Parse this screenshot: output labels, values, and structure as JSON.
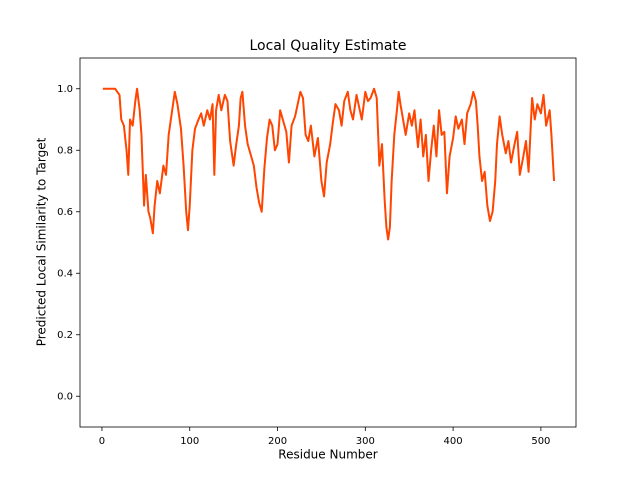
{
  "chart_data": {
    "type": "line",
    "title": "Local Quality Estimate",
    "xlabel": "Residue Number",
    "ylabel": "Predicted Local Similarity to Target",
    "color": "#ff4500",
    "grid": false,
    "xlim": [
      -25,
      540
    ],
    "ylim": [
      -0.1,
      1.1
    ],
    "xticks": [
      0,
      100,
      200,
      300,
      400,
      500
    ],
    "yticks": [
      {
        "value": 0,
        "label": "0.0"
      },
      0.2,
      0.4,
      0.6,
      0.8,
      {
        "value": 1,
        "label": "1.0"
      }
    ],
    "x": [
      1,
      5,
      10,
      15,
      20,
      22,
      25,
      28,
      30,
      32,
      35,
      38,
      40,
      43,
      45,
      48,
      50,
      53,
      55,
      58,
      60,
      63,
      66,
      70,
      73,
      76,
      80,
      83,
      86,
      90,
      93,
      96,
      98,
      100,
      103,
      106,
      110,
      113,
      116,
      120,
      123,
      126,
      128,
      130,
      133,
      136,
      140,
      143,
      146,
      150,
      153,
      156,
      158,
      160,
      163,
      166,
      170,
      173,
      176,
      179,
      182,
      185,
      188,
      191,
      194,
      197,
      200,
      203,
      206,
      210,
      213,
      216,
      220,
      223,
      226,
      229,
      232,
      235,
      238,
      242,
      246,
      250,
      253,
      256,
      260,
      263,
      266,
      270,
      273,
      276,
      280,
      283,
      286,
      290,
      293,
      296,
      300,
      303,
      306,
      310,
      313,
      316,
      319,
      322,
      324,
      326,
      328,
      330,
      333,
      336,
      338,
      340,
      343,
      346,
      350,
      353,
      356,
      360,
      363,
      366,
      369,
      372,
      375,
      378,
      381,
      384,
      387,
      390,
      393,
      396,
      400,
      403,
      406,
      410,
      413,
      416,
      420,
      423,
      426,
      428,
      430,
      433,
      436,
      439,
      442,
      445,
      448,
      450,
      453,
      456,
      460,
      463,
      466,
      470,
      473,
      476,
      480,
      483,
      486,
      490,
      493,
      496,
      500,
      503,
      506,
      510,
      512,
      515
    ],
    "values": [
      1,
      1,
      1,
      1,
      0.98,
      0.9,
      0.88,
      0.8,
      0.72,
      0.9,
      0.88,
      0.96,
      1,
      0.93,
      0.85,
      0.62,
      0.72,
      0.6,
      0.58,
      0.53,
      0.62,
      0.7,
      0.66,
      0.75,
      0.72,
      0.85,
      0.93,
      0.99,
      0.95,
      0.87,
      0.75,
      0.6,
      0.54,
      0.62,
      0.8,
      0.87,
      0.9,
      0.92,
      0.88,
      0.93,
      0.9,
      0.95,
      0.72,
      0.93,
      0.98,
      0.93,
      0.98,
      0.96,
      0.83,
      0.75,
      0.82,
      0.88,
      0.97,
      0.99,
      0.88,
      0.82,
      0.78,
      0.75,
      0.68,
      0.63,
      0.6,
      0.74,
      0.84,
      0.9,
      0.88,
      0.8,
      0.82,
      0.93,
      0.9,
      0.86,
      0.76,
      0.88,
      0.91,
      0.95,
      0.99,
      0.97,
      0.85,
      0.83,
      0.88,
      0.78,
      0.84,
      0.7,
      0.65,
      0.76,
      0.82,
      0.89,
      0.95,
      0.93,
      0.88,
      0.96,
      0.99,
      0.93,
      0.9,
      0.98,
      0.94,
      0.9,
      0.99,
      0.96,
      0.97,
      1,
      0.97,
      0.75,
      0.82,
      0.64,
      0.55,
      0.51,
      0.55,
      0.7,
      0.85,
      0.93,
      0.99,
      0.95,
      0.9,
      0.85,
      0.92,
      0.88,
      0.93,
      0.81,
      0.9,
      0.78,
      0.85,
      0.7,
      0.8,
      0.88,
      0.78,
      0.93,
      0.85,
      0.86,
      0.66,
      0.78,
      0.84,
      0.91,
      0.87,
      0.9,
      0.82,
      0.92,
      0.95,
      0.99,
      0.96,
      0.88,
      0.78,
      0.7,
      0.73,
      0.62,
      0.57,
      0.6,
      0.7,
      0.82,
      0.91,
      0.85,
      0.79,
      0.83,
      0.76,
      0.82,
      0.86,
      0.72,
      0.78,
      0.83,
      0.73,
      0.97,
      0.9,
      0.95,
      0.92,
      0.98,
      0.88,
      0.93,
      0.85,
      0.7
    ]
  }
}
